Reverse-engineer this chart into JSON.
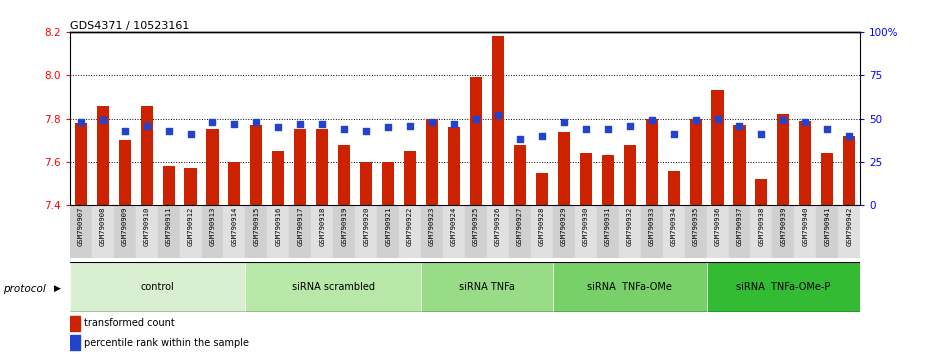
{
  "title": "GDS4371 / 10523161",
  "categories": [
    "GSM790907",
    "GSM790908",
    "GSM790909",
    "GSM790910",
    "GSM790911",
    "GSM790912",
    "GSM790913",
    "GSM790914",
    "GSM790915",
    "GSM790916",
    "GSM790917",
    "GSM790918",
    "GSM790919",
    "GSM790920",
    "GSM790921",
    "GSM790922",
    "GSM790923",
    "GSM790924",
    "GSM790925",
    "GSM790926",
    "GSM790927",
    "GSM790928",
    "GSM790929",
    "GSM790930",
    "GSM790931",
    "GSM790932",
    "GSM790933",
    "GSM790934",
    "GSM790935",
    "GSM790936",
    "GSM790937",
    "GSM790938",
    "GSM790939",
    "GSM790940",
    "GSM790941",
    "GSM790942"
  ],
  "bar_values": [
    7.78,
    7.86,
    7.7,
    7.86,
    7.58,
    7.57,
    7.75,
    7.6,
    7.77,
    7.65,
    7.75,
    7.75,
    7.68,
    7.6,
    7.6,
    7.65,
    7.8,
    7.76,
    7.99,
    8.18,
    7.68,
    7.55,
    7.74,
    7.64,
    7.63,
    7.68,
    7.8,
    7.56,
    7.8,
    7.93,
    7.77,
    7.52,
    7.82,
    7.79,
    7.64,
    7.72
  ],
  "percentile_values": [
    48,
    49,
    43,
    46,
    43,
    41,
    48,
    47,
    48,
    45,
    47,
    47,
    44,
    43,
    45,
    46,
    48,
    47,
    50,
    52,
    38,
    40,
    48,
    44,
    44,
    46,
    49,
    41,
    49,
    50,
    46,
    41,
    49,
    48,
    44,
    40
  ],
  "groups": [
    {
      "label": "control",
      "start": 0,
      "end": 8,
      "color": "#d8f0d0"
    },
    {
      "label": "siRNA scrambled",
      "start": 8,
      "end": 16,
      "color": "#b8e8a8"
    },
    {
      "label": "siRNA TNFa",
      "start": 16,
      "end": 22,
      "color": "#98dc88"
    },
    {
      "label": "siRNA  TNFa-OMe",
      "start": 22,
      "end": 29,
      "color": "#78d068"
    },
    {
      "label": "siRNA  TNFa-OMe-P",
      "start": 29,
      "end": 36,
      "color": "#33bb33"
    }
  ],
  "ylim_left": [
    7.4,
    8.2
  ],
  "ylim_right": [
    0,
    100
  ],
  "yticks_left": [
    7.4,
    7.6,
    7.8,
    8.0,
    8.2
  ],
  "yticks_right": [
    0,
    25,
    50,
    75,
    100
  ],
  "ytick_labels_right": [
    "0",
    "25",
    "50",
    "75",
    "100%"
  ],
  "bar_color": "#cc2200",
  "dot_color": "#2244cc",
  "bar_bottom": 7.4,
  "protocol_label": "protocol",
  "legend_bar": "transformed count",
  "legend_dot": "percentile rank within the sample",
  "bg_color": "#ffffff",
  "xtick_color_even": "#d0d0d0",
  "xtick_color_odd": "#e0e0e0",
  "grid_lines": [
    7.6,
    7.8,
    8.0
  ]
}
